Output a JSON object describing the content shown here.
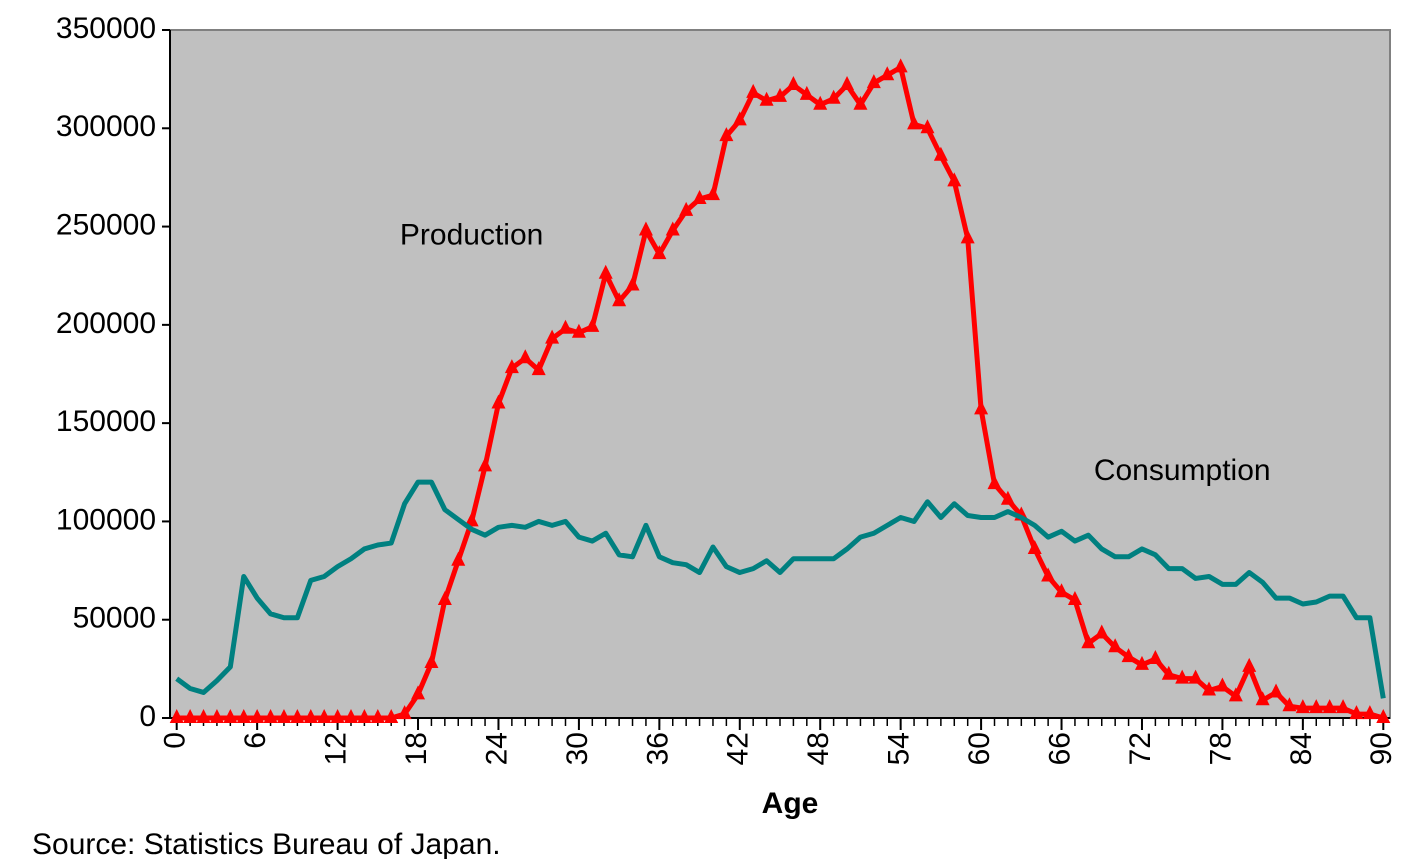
{
  "chart_data": {
    "type": "line",
    "x_label": "Age",
    "source": "Source:  Statistics Bureau of Japan.",
    "annotations": [
      {
        "text": "Production",
        "x": 22,
        "y": 245000
      },
      {
        "text": "Consumption",
        "x": 75,
        "y": 125000
      }
    ],
    "x": [
      0,
      1,
      2,
      3,
      4,
      5,
      6,
      7,
      8,
      9,
      10,
      11,
      12,
      13,
      14,
      15,
      16,
      17,
      18,
      19,
      20,
      21,
      22,
      23,
      24,
      25,
      26,
      27,
      28,
      29,
      30,
      31,
      32,
      33,
      34,
      35,
      36,
      37,
      38,
      39,
      40,
      41,
      42,
      43,
      44,
      45,
      46,
      47,
      48,
      49,
      50,
      51,
      52,
      53,
      54,
      55,
      56,
      57,
      58,
      59,
      60,
      61,
      62,
      63,
      64,
      65,
      66,
      67,
      68,
      69,
      70,
      71,
      72,
      73,
      74,
      75,
      76,
      77,
      78,
      79,
      80,
      81,
      82,
      83,
      84,
      85,
      86,
      87,
      88,
      89,
      90
    ],
    "series": [
      {
        "name": "Production",
        "color": "#ff0000",
        "marker": "triangle",
        "values": [
          0,
          0,
          0,
          0,
          0,
          0,
          0,
          0,
          0,
          0,
          0,
          0,
          0,
          0,
          0,
          0,
          0,
          2000,
          12000,
          28000,
          60000,
          80000,
          100000,
          128000,
          160000,
          178000,
          183000,
          177000,
          193000,
          198000,
          196000,
          199000,
          226000,
          212000,
          220000,
          248000,
          236000,
          248000,
          258000,
          264000,
          266000,
          296000,
          304000,
          318000,
          314000,
          316000,
          322000,
          317000,
          312000,
          315000,
          322000,
          312000,
          323000,
          327000,
          331000,
          302000,
          300000,
          286000,
          273000,
          244000,
          157000,
          119000,
          111000,
          103000,
          86000,
          72000,
          64000,
          60000,
          38000,
          43000,
          36000,
          31000,
          27000,
          30000,
          22000,
          20000,
          20000,
          14000,
          16000,
          11000,
          26000,
          9000,
          13000,
          6000,
          5000,
          5000,
          5000,
          5000,
          2000,
          2000,
          0
        ]
      },
      {
        "name": "Consumption",
        "color": "#008080",
        "values": [
          20000,
          15000,
          13000,
          19000,
          26000,
          72000,
          61000,
          53000,
          51000,
          51000,
          70000,
          72000,
          77000,
          81000,
          86000,
          88000,
          89000,
          109000,
          120000,
          120000,
          106000,
          101000,
          96000,
          93000,
          97000,
          98000,
          97000,
          100000,
          98000,
          100000,
          92000,
          90000,
          94000,
          83000,
          82000,
          98000,
          82000,
          79000,
          78000,
          74000,
          87000,
          77000,
          74000,
          76000,
          80000,
          74000,
          81000,
          81000,
          81000,
          81000,
          86000,
          92000,
          94000,
          98000,
          102000,
          100000,
          110000,
          102000,
          109000,
          103000,
          102000,
          102000,
          105000,
          102000,
          98000,
          92000,
          95000,
          90000,
          93000,
          86000,
          82000,
          82000,
          86000,
          83000,
          76000,
          76000,
          71000,
          72000,
          68000,
          68000,
          74000,
          69000,
          61000,
          61000,
          58000,
          59000,
          62000,
          62000,
          51000,
          51000,
          10000
        ]
      }
    ],
    "xlim": [
      -0.5,
      90.5
    ],
    "xticks": [
      0,
      6,
      12,
      18,
      24,
      30,
      36,
      42,
      48,
      54,
      60,
      66,
      72,
      78,
      84,
      90
    ],
    "ylim": [
      0,
      350000
    ],
    "yticks": [
      0,
      50000,
      100000,
      150000,
      200000,
      250000,
      300000,
      350000
    ],
    "grid": false,
    "plot_background": "#c0c0c0"
  }
}
